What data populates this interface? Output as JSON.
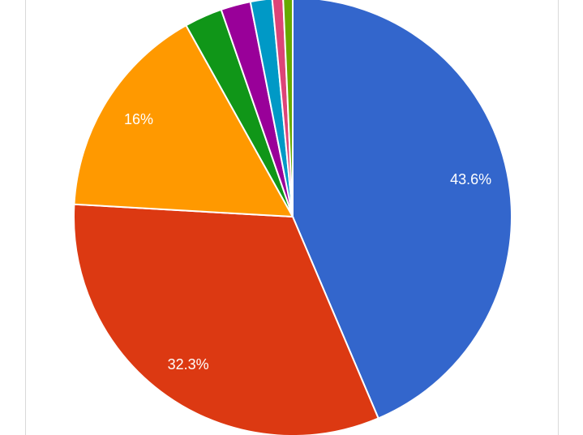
{
  "chart_data": {
    "type": "pie",
    "title": "",
    "start_angle_deg": 0,
    "direction": "clockwise",
    "slices": [
      {
        "value": 43.6,
        "label": "43.6%",
        "color": "#3366cc"
      },
      {
        "value": 32.3,
        "label": "32.3%",
        "color": "#dc3912"
      },
      {
        "value": 16.0,
        "label": "16%",
        "color": "#ff9900"
      },
      {
        "value": 2.8,
        "label": "",
        "color": "#109618"
      },
      {
        "value": 2.2,
        "label": "",
        "color": "#990099"
      },
      {
        "value": 1.6,
        "label": "",
        "color": "#0099c6"
      },
      {
        "value": 0.8,
        "label": "",
        "color": "#dd4477"
      },
      {
        "value": 0.7,
        "label": "",
        "color": "#66aa00"
      }
    ],
    "legend": "none"
  }
}
